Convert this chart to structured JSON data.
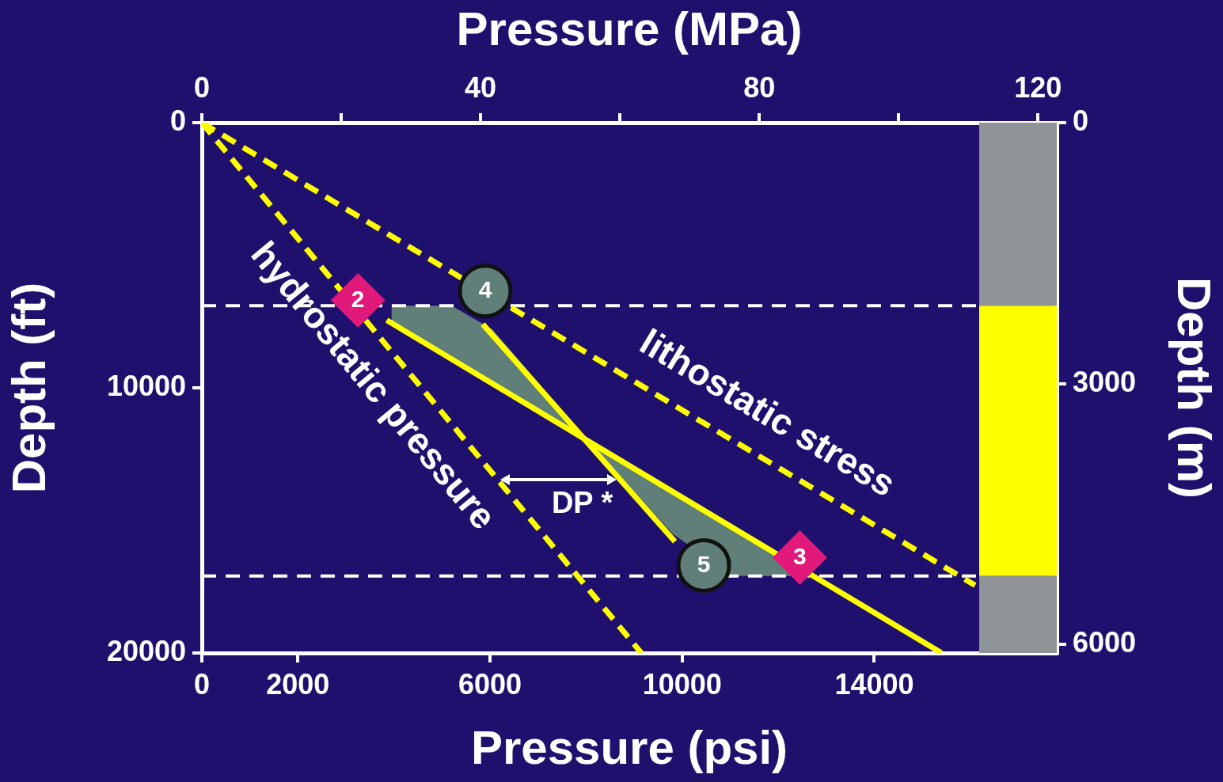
{
  "chart_data": {
    "type": "line",
    "xlabel": "Pressure (psi)",
    "x2label": "Pressure (MPa)",
    "ylabel": "Depth (ft)",
    "y2label": "Depth (m)",
    "xlim": [
      0,
      17800
    ],
    "xticks": [
      0,
      2000,
      6000,
      10000,
      14000
    ],
    "x2lim": [
      0,
      122.7
    ],
    "x2ticks": [
      0,
      {
        "value": 20,
        "label": null
      },
      40,
      {
        "value": 60,
        "label": null
      },
      80,
      {
        "value": 100,
        "label": null
      },
      120
    ],
    "ylim": [
      20000,
      0
    ],
    "yticks": [
      0,
      10000,
      20000
    ],
    "y2lim": [
      6096,
      0
    ],
    "y2ticks": [
      0,
      3000,
      6000
    ],
    "grid": false,
    "legend": false,
    "series": [
      {
        "type": "area",
        "color": "#5f7f78",
        "x": [
          3950,
          5200,
          6050,
          8100,
          3950
        ],
        "values": [
          6900,
          6900,
          7800,
          12100,
          7450
        ]
      },
      {
        "type": "area",
        "color": "#5f7f78",
        "x": [
          8100,
          9800,
          11050,
          12700
        ],
        "values": [
          12100,
          15500,
          17100,
          17100
        ]
      },
      {
        "color": "#ffff00",
        "line_style": "dashed",
        "marker": "none",
        "x": [
          0,
          9150
        ],
        "values": [
          0,
          20000
        ]
      },
      {
        "color": "#ffff00",
        "line_style": "dashed",
        "marker": "none",
        "x": [
          0,
          16100
        ],
        "values": [
          0,
          17450
        ]
      },
      {
        "color": "#ffff00",
        "line_style": "solid",
        "marker": "none",
        "x": [
          3850,
          15400
        ],
        "values": [
          7450,
          20000
        ]
      },
      {
        "color": "#ffff00",
        "line_style": "solid",
        "marker": "none",
        "x": [
          5850,
          9850
        ],
        "values": [
          7600,
          15800
        ]
      },
      {
        "type": "scatter",
        "color": "#e0197a",
        "marker": "diamond",
        "x": [
          3250,
          12450
        ],
        "values": [
          6700,
          16400
        ]
      },
      {
        "type": "scatter",
        "color": "#5f7f78",
        "marker": "circle",
        "x": [
          5900,
          10450
        ],
        "values": [
          6350,
          16700
        ]
      }
    ],
    "ref_lines": [
      {
        "axis": "y",
        "value": 6900,
        "color": "#ffffff",
        "line_style": "dashed"
      },
      {
        "axis": "y",
        "value": 17100,
        "color": "#ffffff",
        "line_style": "dashed"
      }
    ],
    "bands": [
      {
        "axis": "y",
        "from": 0,
        "to": 6900,
        "color": "#8f9498"
      },
      {
        "axis": "y",
        "from": 6900,
        "to": 17100,
        "color": "#ffff00"
      },
      {
        "axis": "y",
        "from": 17100,
        "to": 20000,
        "color": "#8f9498"
      }
    ],
    "annotations": [
      {
        "text": "2",
        "x": 3250,
        "y": 6700
      },
      {
        "text": "3",
        "x": 12450,
        "y": 16400
      },
      {
        "text": "4",
        "x": 5900,
        "y": 6350
      },
      {
        "text": "5",
        "x": 10450,
        "y": 16700
      },
      {
        "text": "hydrostatic pressure",
        "x": 4150,
        "y": 9050
      },
      {
        "text": "lithostatic stress",
        "x": 11350,
        "y": 12250
      },
      {
        "text": "DP *",
        "x": 6150,
        "y": 13450
      }
    ]
  }
}
